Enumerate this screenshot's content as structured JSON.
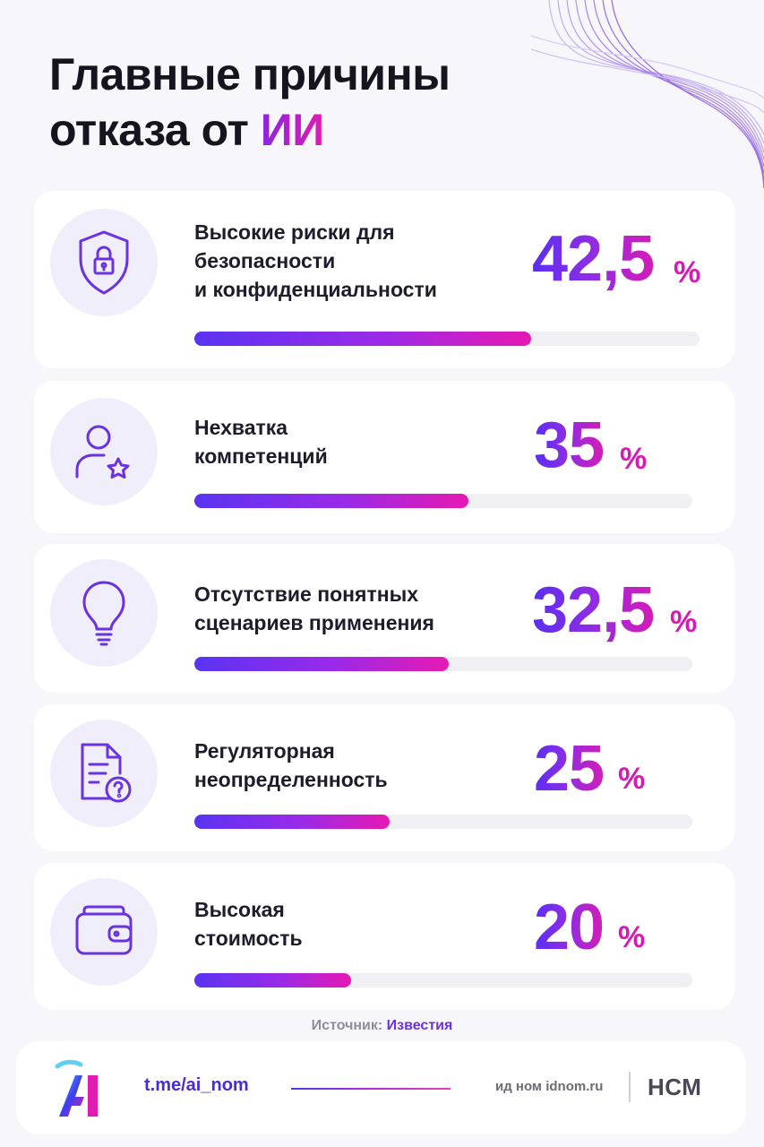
{
  "header": {
    "title_line1": "Главные причины",
    "title_line2_prefix": "отказа от ",
    "title_accent": "ИИ"
  },
  "chart_data": {
    "type": "bar",
    "unit": "%",
    "categories": [
      "Высокие риски для безопасности и конфиденциальности",
      "Нехватка компетенций",
      "Отсутствие понятных сценариев применения",
      "Регуляторная неопределенность",
      "Высокая стоимость"
    ],
    "values": [
      42.5,
      35,
      32.5,
      25,
      20
    ],
    "xlim": [
      0,
      100
    ]
  },
  "items": [
    {
      "label_lines": [
        "Высокие риски для",
        "безопасности",
        "и конфиденциальности"
      ],
      "value_text": "42,5",
      "value": 42.5,
      "unit": "%",
      "icon": "shield-lock-icon"
    },
    {
      "label_lines": [
        "Нехватка",
        "компетенций"
      ],
      "value_text": "35",
      "value": 35,
      "unit": "%",
      "icon": "user-star-icon"
    },
    {
      "label_lines": [
        "Отсутствие понятных",
        "сценариев применения"
      ],
      "value_text": "32,5",
      "value": 32.5,
      "unit": "%",
      "icon": "lightbulb-icon"
    },
    {
      "label_lines": [
        "Регуляторная",
        "неопределенность"
      ],
      "value_text": "25",
      "value": 25,
      "unit": "%",
      "icon": "document-question-icon"
    },
    {
      "label_lines": [
        "Высокая",
        "стоимость"
      ],
      "value_text": "20",
      "value": 20,
      "unit": "%",
      "icon": "wallet-icon"
    }
  ],
  "source": {
    "prefix": "Источник:",
    "name": "Известия"
  },
  "footer": {
    "channel": "t.me/ai_nom",
    "partner": "ид ном idnom.ru",
    "brand": "НСМ"
  },
  "colors": {
    "accent_purple": "#6a33e0",
    "accent_pink": "#d81ab5",
    "track": "#efeff4"
  }
}
